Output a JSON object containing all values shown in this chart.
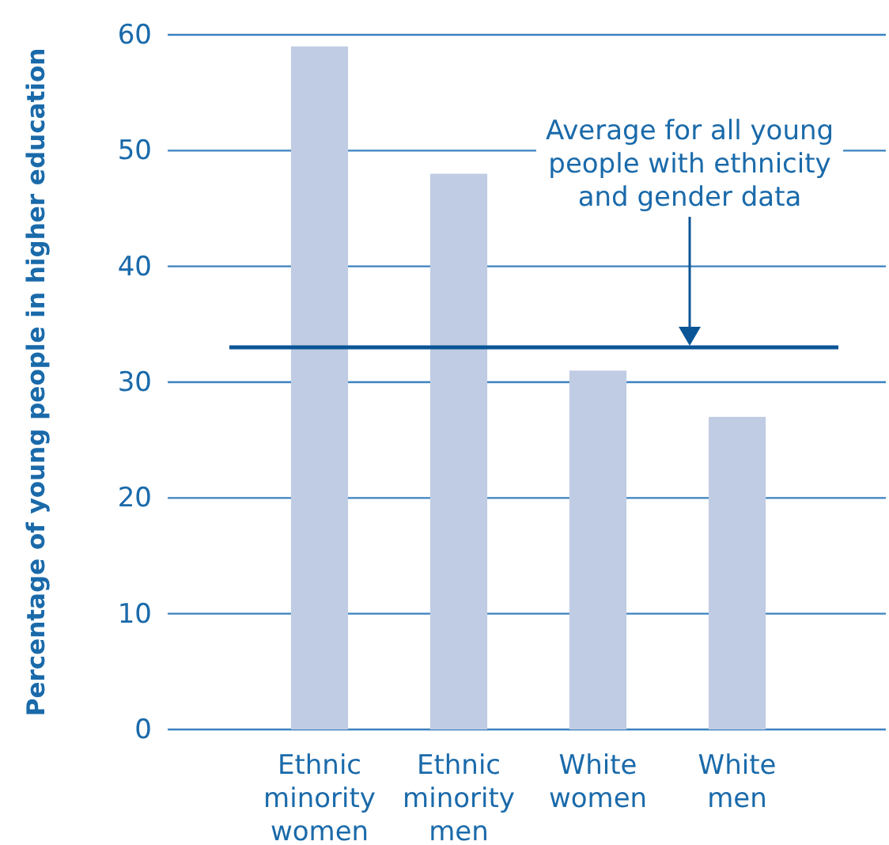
{
  "chart_data": {
    "type": "bar",
    "ylabel": "Percentage of young people in higher education",
    "categories": [
      "Ethnic minority women",
      "Ethnic minority men",
      "White women",
      "White men"
    ],
    "values": [
      59,
      48,
      31,
      27
    ],
    "color": "#c0cce3",
    "ylim": [
      0,
      60
    ],
    "yticks": [
      0,
      10,
      20,
      30,
      40,
      50,
      60
    ],
    "grid": "y",
    "ref_lines": [
      {
        "axis": "y",
        "value": 33,
        "label": "Average for all young people with ethnicity and gender data",
        "color": "#0a5596"
      }
    ]
  }
}
